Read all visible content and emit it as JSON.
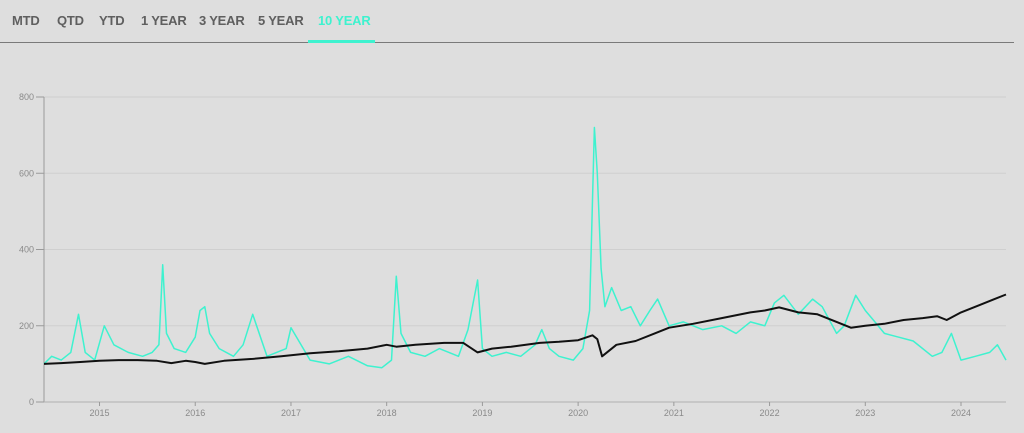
{
  "tabs": [
    {
      "label": "MTD",
      "active": false
    },
    {
      "label": "QTD",
      "active": false
    },
    {
      "label": "YTD",
      "active": false
    },
    {
      "label": "1 YEAR",
      "active": false
    },
    {
      "label": "3 YEAR",
      "active": false
    },
    {
      "label": "5 YEAR",
      "active": false
    },
    {
      "label": "10 YEAR",
      "active": true
    }
  ],
  "colors": {
    "accent": "#3ef2cf",
    "series_a": "#3ef2cf",
    "series_b": "#111111",
    "grid": "#cfcfcf"
  },
  "chart_data": {
    "type": "line",
    "title": "",
    "xlabel": "",
    "ylabel": "",
    "xlim": [
      2014.42,
      2024.47
    ],
    "ylim": [
      0,
      800
    ],
    "yticks": [
      0,
      200,
      400,
      600,
      800
    ],
    "ytick_labels": [
      "0",
      "200",
      "400",
      "600",
      "800"
    ],
    "xticks": [
      2015,
      2016,
      2017,
      2018,
      2019,
      2020,
      2021,
      2022,
      2023,
      2024
    ],
    "xtick_labels": [
      "2015",
      "2016",
      "2017",
      "2018",
      "2019",
      "2020",
      "2021",
      "2022",
      "2023",
      "2024"
    ],
    "grid": "horizontal",
    "legend": "none",
    "series": [
      {
        "color": "#3ef2cf",
        "x": [
          2014.42,
          2014.5,
          2014.6,
          2014.7,
          2014.78,
          2014.85,
          2014.95,
          2015.05,
          2015.15,
          2015.3,
          2015.45,
          2015.55,
          2015.62,
          2015.66,
          2015.7,
          2015.78,
          2015.9,
          2016.0,
          2016.05,
          2016.1,
          2016.15,
          2016.25,
          2016.4,
          2016.5,
          2016.6,
          2016.75,
          2016.85,
          2016.95,
          2017.0,
          2017.2,
          2017.4,
          2017.6,
          2017.8,
          2017.95,
          2018.05,
          2018.1,
          2018.15,
          2018.25,
          2018.4,
          2018.55,
          2018.75,
          2018.85,
          2018.95,
          2019.0,
          2019.1,
          2019.25,
          2019.4,
          2019.55,
          2019.62,
          2019.7,
          2019.8,
          2019.95,
          2020.05,
          2020.12,
          2020.17,
          2020.2,
          2020.24,
          2020.28,
          2020.35,
          2020.45,
          2020.55,
          2020.65,
          2020.75,
          2020.83,
          2020.95,
          2021.1,
          2021.3,
          2021.5,
          2021.65,
          2021.8,
          2021.95,
          2022.05,
          2022.15,
          2022.3,
          2022.45,
          2022.55,
          2022.7,
          2022.78,
          2022.9,
          2023.0,
          2023.1,
          2023.2,
          2023.35,
          2023.5,
          2023.7,
          2023.8,
          2023.9,
          2024.0,
          2024.15,
          2024.3,
          2024.38,
          2024.47
        ],
        "y": [
          100,
          120,
          110,
          130,
          230,
          130,
          110,
          200,
          150,
          130,
          120,
          130,
          150,
          360,
          180,
          140,
          130,
          170,
          240,
          250,
          180,
          140,
          120,
          150,
          230,
          120,
          130,
          140,
          195,
          110,
          100,
          120,
          95,
          90,
          110,
          330,
          180,
          130,
          120,
          140,
          120,
          190,
          320,
          140,
          120,
          130,
          120,
          150,
          190,
          140,
          120,
          110,
          140,
          240,
          720,
          600,
          350,
          250,
          300,
          240,
          250,
          200,
          240,
          270,
          200,
          210,
          190,
          200,
          180,
          210,
          200,
          260,
          280,
          230,
          270,
          250,
          180,
          200,
          280,
          240,
          210,
          180,
          170,
          160,
          120,
          130,
          180,
          110,
          120,
          130,
          150,
          110
        ]
      },
      {
        "color": "#111111",
        "x": [
          2014.42,
          2014.6,
          2014.8,
          2015.0,
          2015.2,
          2015.4,
          2015.6,
          2015.75,
          2015.9,
          2016.0,
          2016.1,
          2016.3,
          2016.6,
          2016.9,
          2017.2,
          2017.5,
          2017.8,
          2018.0,
          2018.1,
          2018.3,
          2018.6,
          2018.8,
          2018.95,
          2019.1,
          2019.3,
          2019.6,
          2019.8,
          2020.0,
          2020.15,
          2020.2,
          2020.25,
          2020.4,
          2020.6,
          2020.8,
          2020.95,
          2021.2,
          2021.5,
          2021.8,
          2021.95,
          2022.1,
          2022.3,
          2022.5,
          2022.7,
          2022.85,
          2023.0,
          2023.2,
          2023.4,
          2023.6,
          2023.75,
          2023.85,
          2024.0,
          2024.2,
          2024.35,
          2024.47
        ],
        "y": [
          100,
          102,
          105,
          108,
          110,
          110,
          108,
          102,
          108,
          105,
          100,
          108,
          113,
          120,
          128,
          133,
          140,
          150,
          145,
          150,
          155,
          155,
          130,
          140,
          145,
          155,
          158,
          162,
          175,
          165,
          120,
          150,
          160,
          180,
          195,
          205,
          220,
          235,
          240,
          248,
          235,
          230,
          210,
          195,
          200,
          205,
          215,
          220,
          225,
          215,
          235,
          255,
          270,
          282
        ]
      }
    ]
  }
}
